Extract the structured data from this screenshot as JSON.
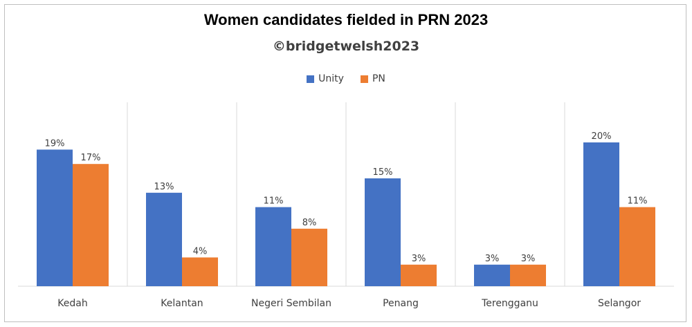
{
  "chart_data": {
    "type": "bar",
    "title": "Women candidates fielded in PRN 2023",
    "subtitle": "©bridgetwelsh2023",
    "categories": [
      "Kedah",
      "Kelantan",
      "Negeri Sembilan",
      "Penang",
      "Terengganu",
      "Selangor"
    ],
    "series": [
      {
        "name": "Unity",
        "color": "#4472C4",
        "values": [
          19,
          13,
          11,
          15,
          3,
          20
        ],
        "labels": [
          "19%",
          "13%",
          "11%",
          "15%",
          "3%",
          "20%"
        ]
      },
      {
        "name": "PN",
        "color": "#ED7D31",
        "values": [
          17,
          4,
          8,
          3,
          3,
          11
        ],
        "labels": [
          "17%",
          "4%",
          "8%",
          "3%",
          "3%",
          "11%"
        ]
      }
    ],
    "value_unit": "%",
    "ylim": [
      0,
      20
    ],
    "legend_position": "top",
    "grid": false,
    "category_separators": true
  }
}
